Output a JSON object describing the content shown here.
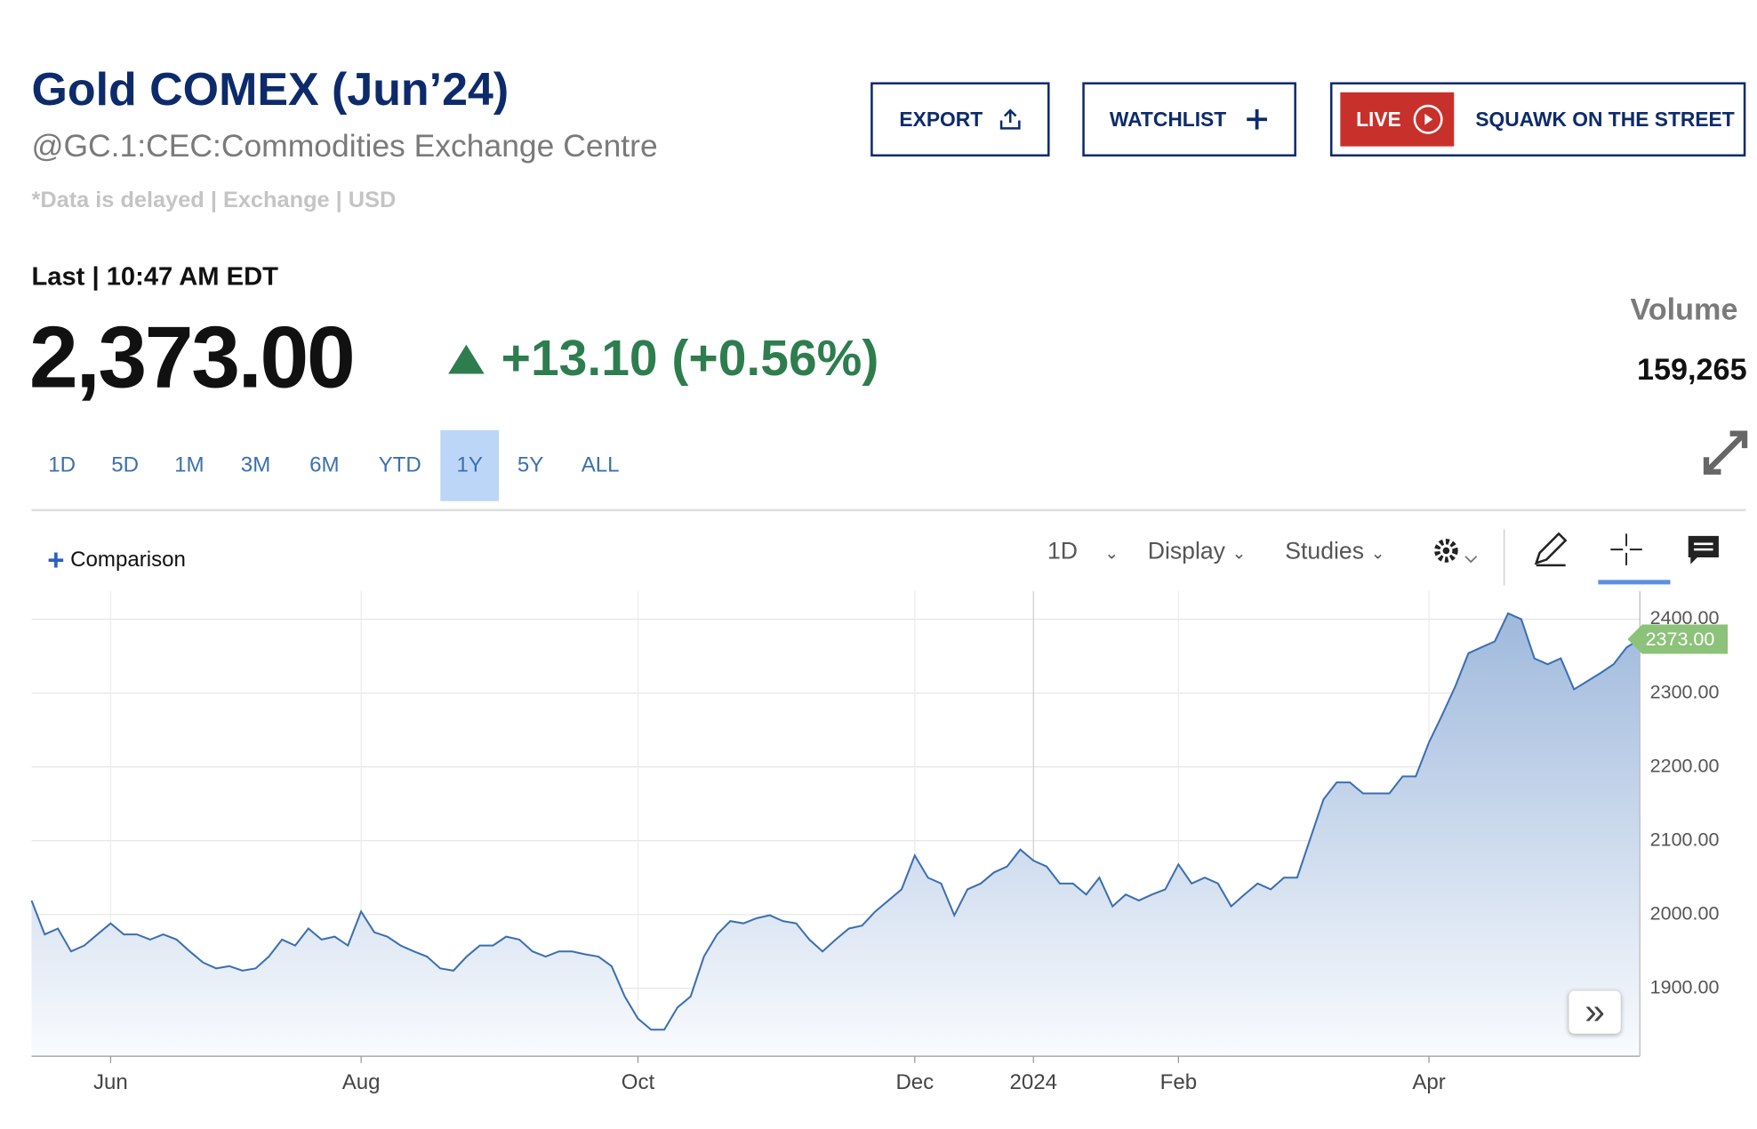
{
  "header": {
    "title": "Gold COMEX (Jun’24)",
    "subtitle": "@GC.1:CEC:Commodities Exchange Centre",
    "note": "*Data is delayed | Exchange | USD"
  },
  "buttons": {
    "export": "EXPORT",
    "watchlist": "WATCHLIST",
    "live": "LIVE",
    "squawk": "SQUAWK ON THE STREET"
  },
  "quote": {
    "last_label": "Last | 10:47 AM EDT",
    "price": "2,373.00",
    "change": "+13.10 (+0.56%)",
    "volume_label": "Volume",
    "volume": "159,265"
  },
  "ranges": {
    "tabs": [
      "1D",
      "5D",
      "1M",
      "3M",
      "6M",
      "YTD",
      "1Y",
      "5Y",
      "ALL"
    ],
    "selected": 6
  },
  "toolbar": {
    "comparison": "Comparison",
    "interval": "1D",
    "display": "Display",
    "studies": "Studies"
  },
  "chart_data": {
    "type": "line",
    "color": "#3b6fb0",
    "grid": true,
    "categories": [
      null,
      null,
      null,
      null,
      null,
      null,
      "Jun",
      null,
      null,
      null,
      null,
      null,
      null,
      null,
      null,
      null,
      null,
      null,
      null,
      null,
      null,
      null,
      null,
      null,
      null,
      "Aug",
      null,
      null,
      null,
      null,
      null,
      null,
      null,
      null,
      null,
      null,
      null,
      null,
      null,
      null,
      null,
      null,
      null,
      null,
      null,
      null,
      "Oct",
      null,
      null,
      null,
      null,
      null,
      null,
      null,
      null,
      null,
      null,
      null,
      null,
      null,
      null,
      null,
      null,
      null,
      null,
      null,
      null,
      "Dec",
      null,
      null,
      null,
      null,
      null,
      null,
      null,
      null,
      "2024",
      null,
      null,
      null,
      null,
      null,
      null,
      null,
      null,
      null,
      null,
      "Feb",
      null,
      null,
      null,
      null,
      null,
      null,
      null,
      null,
      null,
      null,
      null,
      null,
      null,
      null,
      null,
      null,
      null,
      null,
      "Apr",
      null,
      null,
      null,
      null,
      null,
      null,
      null,
      null,
      null,
      null,
      null,
      null,
      null,
      null,
      null,
      null
    ],
    "values": [
      2019,
      1973,
      1981,
      1950,
      1958,
      1973,
      1988,
      1973,
      1973,
      1966,
      1973,
      1966,
      1950,
      1935,
      1927,
      1930,
      1924,
      1927,
      1943,
      1966,
      1958,
      1981,
      1966,
      1970,
      1958,
      2004,
      1976,
      1970,
      1958,
      1950,
      1943,
      1927,
      1924,
      1943,
      1958,
      1958,
      1970,
      1966,
      1950,
      1943,
      1950,
      1950,
      1946,
      1943,
      1930,
      1889,
      1859,
      1844,
      1844,
      1874,
      1889,
      1943,
      1973,
      1991,
      1988,
      1995,
      1999,
      1991,
      1988,
      1966,
      1950,
      1966,
      1981,
      1985,
      2004,
      2019,
      2034,
      2080,
      2050,
      2042,
      1999,
      2034,
      2042,
      2057,
      2065,
      2088,
      2073,
      2065,
      2042,
      2042,
      2027,
      2050,
      2011,
      2027,
      2019,
      2027,
      2034,
      2068,
      2042,
      2050,
      2042,
      2011,
      2027,
      2042,
      2034,
      2050,
      2050,
      2103,
      2156,
      2179,
      2179,
      2164,
      2164,
      2164,
      2187,
      2187,
      2233,
      2270,
      2309,
      2354,
      2362,
      2370,
      2408,
      2400,
      2347,
      2339,
      2347,
      2305,
      2316,
      2327,
      2339,
      2362,
      2373
    ],
    "ylim": [
      1808,
      2438
    ],
    "yticks": [
      {
        "value": 1900,
        "label": "1900.00"
      },
      {
        "value": 2000,
        "label": "2000.00"
      },
      {
        "value": 2100,
        "label": "2100.00"
      },
      {
        "value": 2200,
        "label": "2200.00"
      },
      {
        "value": 2300,
        "label": "2300.00"
      },
      {
        "value": 2400,
        "label": "2400.00"
      }
    ],
    "last_value": {
      "value": 2373,
      "label": "2373.00"
    }
  }
}
